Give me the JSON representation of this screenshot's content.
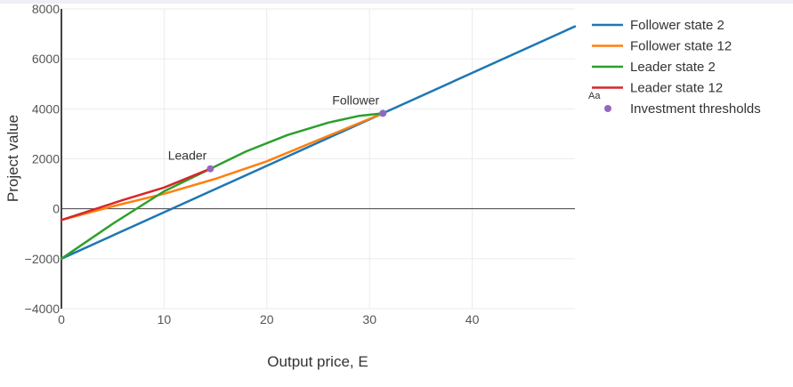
{
  "chart_data": {
    "type": "line",
    "xlabel": "Output price, E",
    "ylabel": "Project value",
    "xlim": [
      0,
      50
    ],
    "ylim": [
      -4000,
      8000
    ],
    "x_ticks": [
      0,
      10,
      20,
      30,
      40
    ],
    "x_tick_labels": [
      "0",
      "10",
      "20",
      "30",
      "40"
    ],
    "y_ticks": [
      -4000,
      -2000,
      0,
      2000,
      4000,
      6000,
      8000
    ],
    "y_tick_labels": [
      "−4000",
      "−2000",
      "0",
      "2000",
      "4000",
      "6000",
      "8000"
    ],
    "grid": true,
    "legend_position": "top-right",
    "series": [
      {
        "name": "Follower state 2",
        "color": "#1f77b4",
        "x": [
          0,
          50
        ],
        "y": [
          -2000,
          7300
        ]
      },
      {
        "name": "Follower state 12",
        "color": "#ff7f0e",
        "x": [
          0,
          5,
          10,
          15,
          20,
          25,
          31.3
        ],
        "y": [
          -450,
          100,
          600,
          1200,
          1900,
          2750,
          3820
        ]
      },
      {
        "name": "Leader state 2",
        "color": "#2ca02c",
        "x": [
          0,
          5,
          10,
          14.5,
          18,
          22,
          26,
          29,
          31.3
        ],
        "y": [
          -2000,
          -600,
          700,
          1600,
          2300,
          2950,
          3450,
          3720,
          3820
        ]
      },
      {
        "name": "Leader state 12",
        "color": "#d62728",
        "x": [
          0,
          3,
          6,
          10,
          14.5
        ],
        "y": [
          -450,
          -50,
          350,
          850,
          1600
        ]
      }
    ],
    "markers": {
      "name": "Investment thresholds",
      "color": "#9467bd",
      "x": [
        14.5,
        31.3
      ],
      "y": [
        1600,
        3820
      ]
    },
    "annotations": [
      {
        "text": "Leader",
        "x": 14.5,
        "y": 1600
      },
      {
        "text": "Follower",
        "x": 31.3,
        "y": 3820
      }
    ],
    "legend_extra_label": "Aa"
  }
}
